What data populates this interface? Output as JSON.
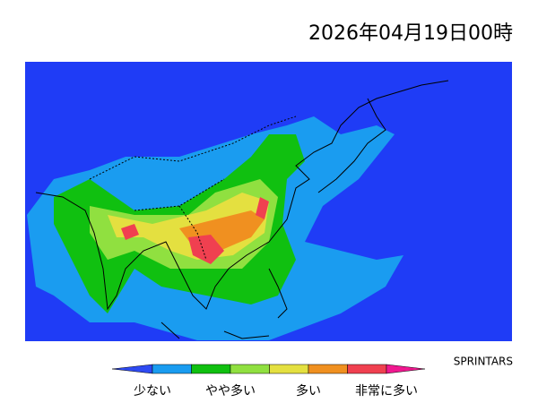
{
  "header": {
    "title": "2026年04月19日00時",
    "credit": "SPRINTARS"
  },
  "legend": {
    "colors": [
      "#2e4af2",
      "#1a9cf0",
      "#10c010",
      "#90e040",
      "#e4e040",
      "#f09020",
      "#f04050",
      "#f01890"
    ],
    "labels": [
      "少ない",
      "やや多い",
      "多い",
      "非常に多い"
    ]
  }
}
